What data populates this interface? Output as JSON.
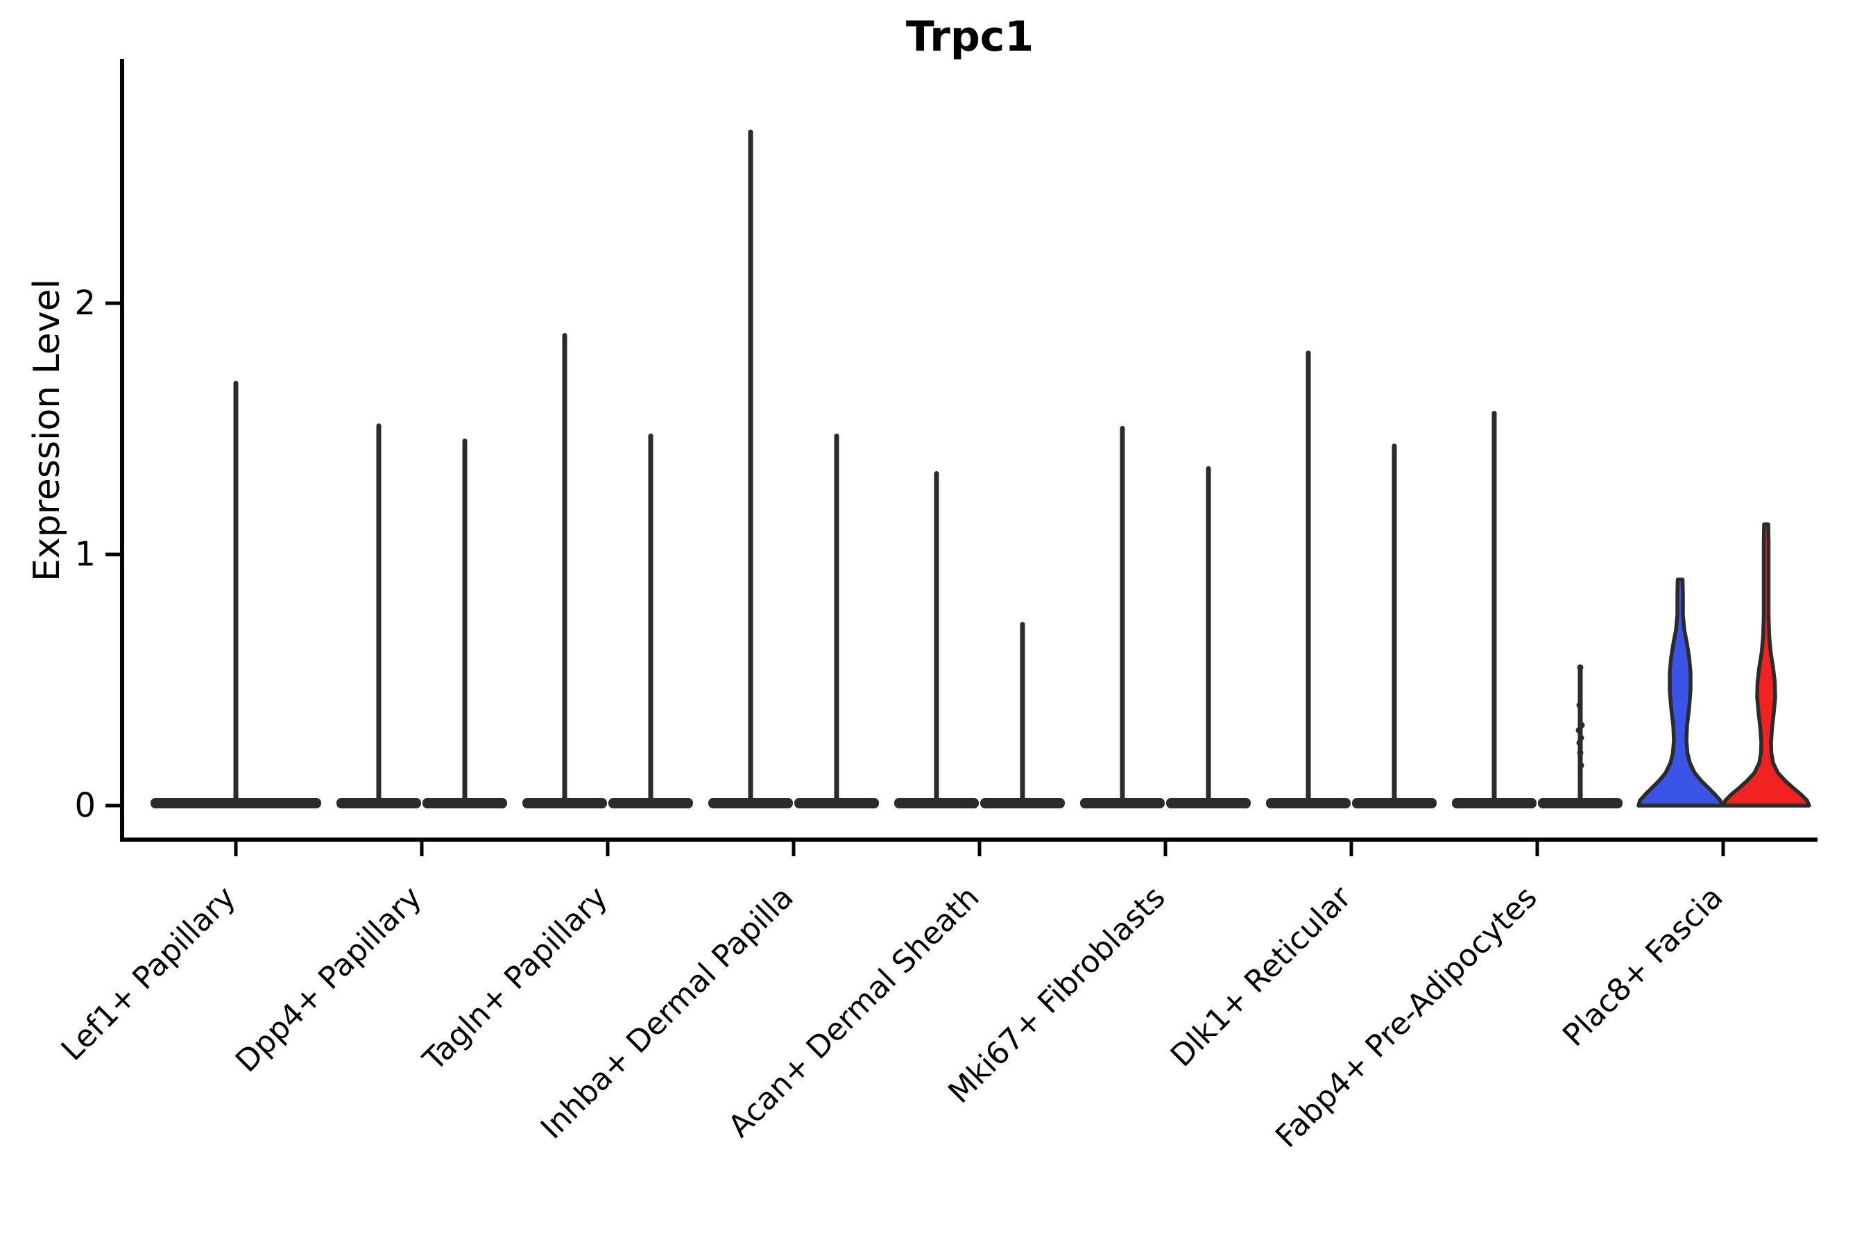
{
  "chart_data": {
    "type": "violin",
    "title": "Trpc1",
    "xlabel": "",
    "ylabel": "Expression Level",
    "ylim": [
      0,
      2.97
    ],
    "yticks": [
      0,
      1,
      2
    ],
    "grid": false,
    "legend": "none",
    "categories": [
      "Lef1+ Papillary",
      "Dpp4+ Papillary",
      "Tagln+ Papillary",
      "Inhba+ Dermal Papilla",
      "Acan+ Dermal Sheath",
      "Mki67+ Fibroblasts",
      "Dlk1+ Reticular",
      "Fabp4+ Pre-Adipocytes",
      "Plac8+ Fascia"
    ],
    "groups_per_category": 2,
    "violins": [
      {
        "category_index": 0,
        "side": "center",
        "style": "spike",
        "max": 1.69,
        "half_width": 123,
        "fill": "white"
      },
      {
        "category_index": 1,
        "side": "left",
        "style": "spike",
        "max": 1.52,
        "half_width": 61,
        "fill": "white"
      },
      {
        "category_index": 1,
        "side": "right",
        "style": "spike",
        "max": 1.46,
        "half_width": 61,
        "fill": "white"
      },
      {
        "category_index": 2,
        "side": "left",
        "style": "spike",
        "max": 1.88,
        "half_width": 61,
        "fill": "white"
      },
      {
        "category_index": 2,
        "side": "right",
        "style": "spike",
        "max": 1.48,
        "half_width": 61,
        "fill": "white"
      },
      {
        "category_index": 3,
        "side": "left",
        "style": "spike",
        "max": 2.69,
        "half_width": 61,
        "fill": "white"
      },
      {
        "category_index": 3,
        "side": "right",
        "style": "spike",
        "max": 1.48,
        "half_width": 61,
        "fill": "white"
      },
      {
        "category_index": 4,
        "side": "left",
        "style": "spike",
        "max": 1.33,
        "half_width": 61,
        "fill": "white"
      },
      {
        "category_index": 4,
        "side": "right",
        "style": "spike",
        "max": 0.73,
        "half_width": 61,
        "fill": "white"
      },
      {
        "category_index": 5,
        "side": "left",
        "style": "spike",
        "max": 1.51,
        "half_width": 61,
        "fill": "white"
      },
      {
        "category_index": 5,
        "side": "right",
        "style": "spike",
        "max": 1.35,
        "half_width": 61,
        "fill": "white"
      },
      {
        "category_index": 6,
        "side": "left",
        "style": "spike",
        "max": 1.81,
        "half_width": 61,
        "fill": "white"
      },
      {
        "category_index": 6,
        "side": "right",
        "style": "spike",
        "max": 1.44,
        "half_width": 61,
        "fill": "white"
      },
      {
        "category_index": 7,
        "side": "left",
        "style": "spike",
        "max": 1.57,
        "half_width": 61,
        "fill": "white"
      },
      {
        "category_index": 7,
        "side": "right",
        "style": "spike",
        "max": 0.55,
        "half_width": 61,
        "fill": "white",
        "points": [
          0.55,
          0.4,
          0.32,
          0.3,
          0.27,
          0.25,
          0.21,
          0.16
        ]
      },
      {
        "category_index": 8,
        "side": "left",
        "style": "shaped",
        "max": 0.9,
        "fill": "blue",
        "profile": [
          [
            0,
            60
          ],
          [
            0.02,
            58
          ],
          [
            0.045,
            50
          ],
          [
            0.07,
            41
          ],
          [
            0.1,
            30
          ],
          [
            0.13,
            21
          ],
          [
            0.17,
            14
          ],
          [
            0.21,
            10.5
          ],
          [
            0.26,
            9
          ],
          [
            0.32,
            10
          ],
          [
            0.39,
            13
          ],
          [
            0.46,
            15
          ],
          [
            0.53,
            15
          ],
          [
            0.59,
            13
          ],
          [
            0.65,
            9.5
          ],
          [
            0.7,
            6
          ],
          [
            0.76,
            4
          ],
          [
            0.84,
            4
          ],
          [
            0.9,
            3.5
          ]
        ]
      },
      {
        "category_index": 8,
        "side": "right",
        "style": "shaped",
        "max": 1.12,
        "fill": "red",
        "profile": [
          [
            0,
            62
          ],
          [
            0.02,
            59
          ],
          [
            0.045,
            50
          ],
          [
            0.07,
            39
          ],
          [
            0.1,
            27
          ],
          [
            0.13,
            17
          ],
          [
            0.17,
            10
          ],
          [
            0.21,
            7.5
          ],
          [
            0.25,
            7
          ],
          [
            0.31,
            8.5
          ],
          [
            0.37,
            11
          ],
          [
            0.43,
            13
          ],
          [
            0.49,
            12.5
          ],
          [
            0.55,
            10
          ],
          [
            0.61,
            6.5
          ],
          [
            0.67,
            4.5
          ],
          [
            0.75,
            3.5
          ],
          [
            0.95,
            3.5
          ],
          [
            1.05,
            3.5
          ],
          [
            1.12,
            3
          ]
        ]
      }
    ],
    "colors": {
      "blue": "#3A55E6",
      "red": "#F12222",
      "violin_outline": "#2B2B2B",
      "axis": "#000000",
      "point": "#2B2B2B"
    }
  }
}
